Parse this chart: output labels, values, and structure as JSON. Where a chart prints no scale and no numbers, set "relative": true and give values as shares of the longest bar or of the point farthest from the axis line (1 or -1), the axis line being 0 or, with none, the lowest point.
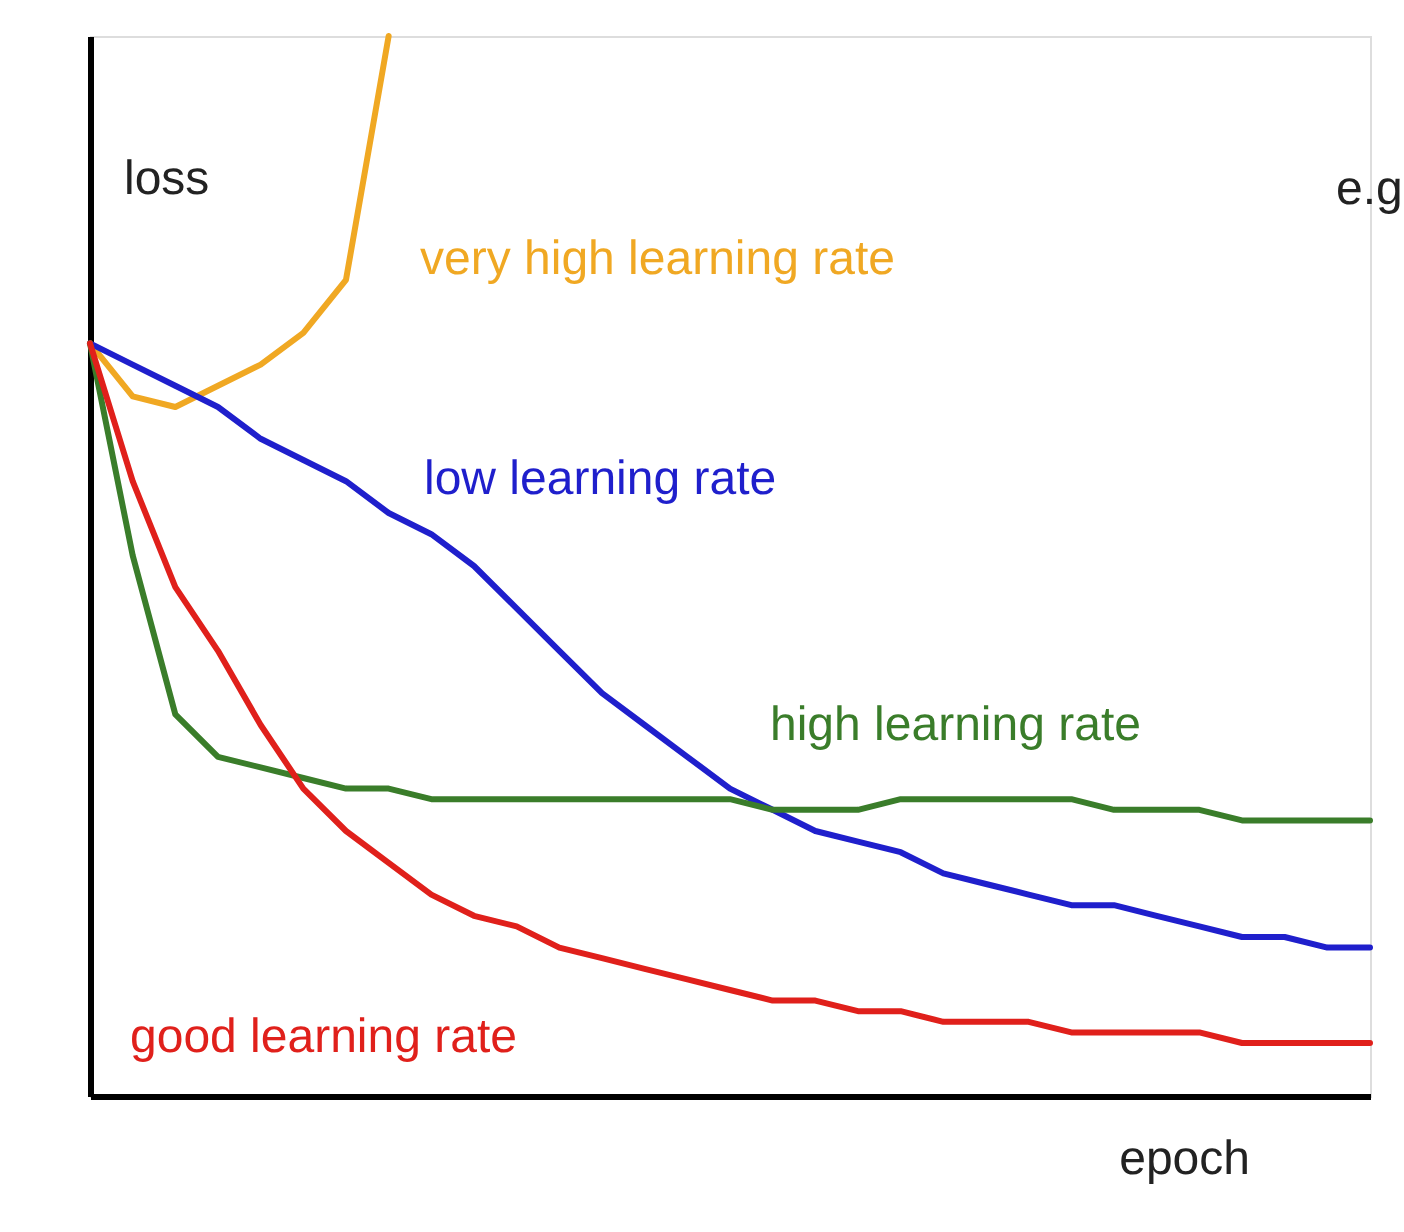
{
  "chart_data": {
    "type": "line",
    "relative": true,
    "xlabel": "epoch",
    "ylabel": "loss",
    "legend": false,
    "grid": false,
    "tick_labels": false,
    "marker": "none",
    "line_style": "solid",
    "categories": [
      null,
      null,
      null,
      null,
      null,
      null,
      null,
      null,
      null,
      null,
      null,
      null,
      null,
      null,
      null,
      null,
      null,
      null,
      null,
      null,
      null,
      null,
      null,
      null,
      null,
      null,
      null,
      null,
      null,
      null,
      null
    ],
    "series": [
      {
        "name": "very high learning rate",
        "color": "#f0a823",
        "values": [
          0.71,
          0.66,
          0.65,
          0.67,
          0.69,
          0.72,
          0.77,
          1.0,
          null,
          null,
          null,
          null,
          null,
          null,
          null,
          null,
          null,
          null,
          null,
          null,
          null,
          null,
          null,
          null,
          null,
          null,
          null,
          null,
          null,
          null,
          null
        ]
      },
      {
        "name": "low learning rate",
        "color": "#1f1fcc",
        "values": [
          0.71,
          0.69,
          0.67,
          0.65,
          0.62,
          0.6,
          0.58,
          0.55,
          0.53,
          0.5,
          0.46,
          0.42,
          0.38,
          0.35,
          0.32,
          0.29,
          0.27,
          0.25,
          0.24,
          0.23,
          0.21,
          0.2,
          0.19,
          0.18,
          0.18,
          0.17,
          0.16,
          0.15,
          0.15,
          0.14,
          0.14
        ]
      },
      {
        "name": "high learning rate",
        "color": "#3a7d2a",
        "values": [
          0.71,
          0.51,
          0.36,
          0.32,
          0.31,
          0.3,
          0.29,
          0.29,
          0.28,
          0.28,
          0.28,
          0.28,
          0.28,
          0.28,
          0.28,
          0.28,
          0.27,
          0.27,
          0.27,
          0.28,
          0.28,
          0.28,
          0.28,
          0.28,
          0.27,
          0.27,
          0.27,
          0.26,
          0.26,
          0.26,
          0.26
        ]
      },
      {
        "name": "good learning rate",
        "color": "#e0201b",
        "values": [
          0.71,
          0.58,
          0.48,
          0.42,
          0.35,
          0.29,
          0.25,
          0.22,
          0.19,
          0.17,
          0.16,
          0.14,
          0.13,
          0.12,
          0.11,
          0.1,
          0.09,
          0.09,
          0.08,
          0.08,
          0.07,
          0.07,
          0.07,
          0.06,
          0.06,
          0.06,
          0.06,
          0.05,
          0.05,
          0.05,
          0.05
        ]
      }
    ],
    "annotations": [
      "e.g"
    ]
  }
}
